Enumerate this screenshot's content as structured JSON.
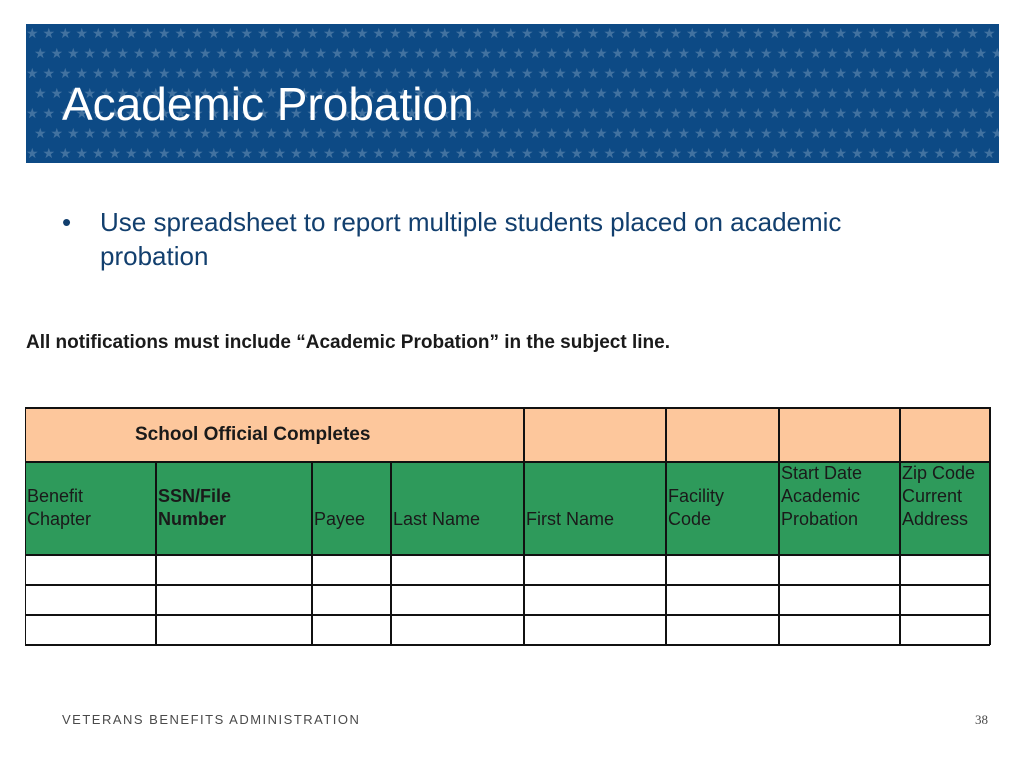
{
  "slide": {
    "title": "Academic Probation",
    "bullet_marker": "•",
    "bullet_text": "Use spreadsheet to report multiple students placed on academic probation",
    "notice": "All notifications must include “Academic Probation” in the subject line."
  },
  "table": {
    "header_title": "School Official  Completes",
    "columns": [
      {
        "lines": [
          "Benefit",
          "Chapter"
        ],
        "bold": false
      },
      {
        "lines": [
          "SSN/File",
          "Number"
        ],
        "bold": true
      },
      {
        "lines": [
          "Payee"
        ],
        "bold": false
      },
      {
        "lines": [
          "Last Name"
        ],
        "bold": false
      },
      {
        "lines": [
          "First Name"
        ],
        "bold": false
      },
      {
        "lines": [
          "Facility",
          "Code"
        ],
        "bold": false
      },
      {
        "lines": [
          "Start Date",
          "Academic",
          "Probation"
        ],
        "bold": false
      },
      {
        "lines": [
          "Zip Code",
          "Current",
          "Address"
        ],
        "bold": false
      }
    ],
    "empty_rows": 3
  },
  "footer": {
    "org": "VETERANS BENEFITS ADMINISTRATION",
    "page_number": "38"
  },
  "colors": {
    "banner": "#0d4a85",
    "header_row": "#fdc79c",
    "column_row": "#2e9a5b",
    "title_text": "#ffffff",
    "bullet_text": "#123f6e"
  }
}
